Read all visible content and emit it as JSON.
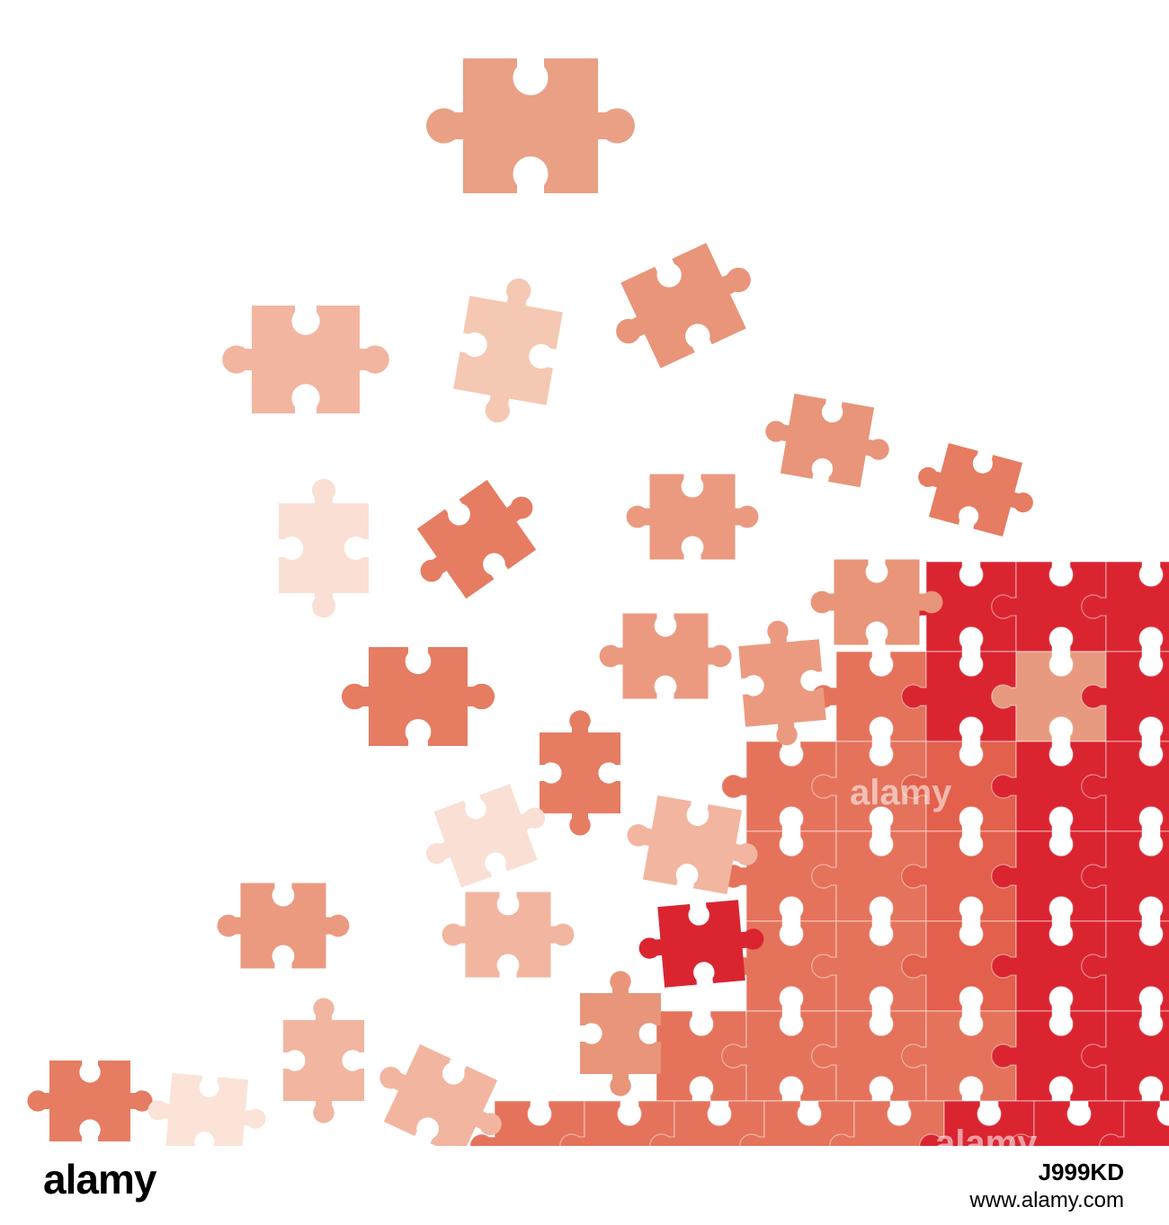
{
  "watermarks": [
    "alamy",
    "alamy"
  ],
  "footer": {
    "logo": "alamy",
    "url": "www.alamy.com",
    "image_id": "J999KD"
  }
}
